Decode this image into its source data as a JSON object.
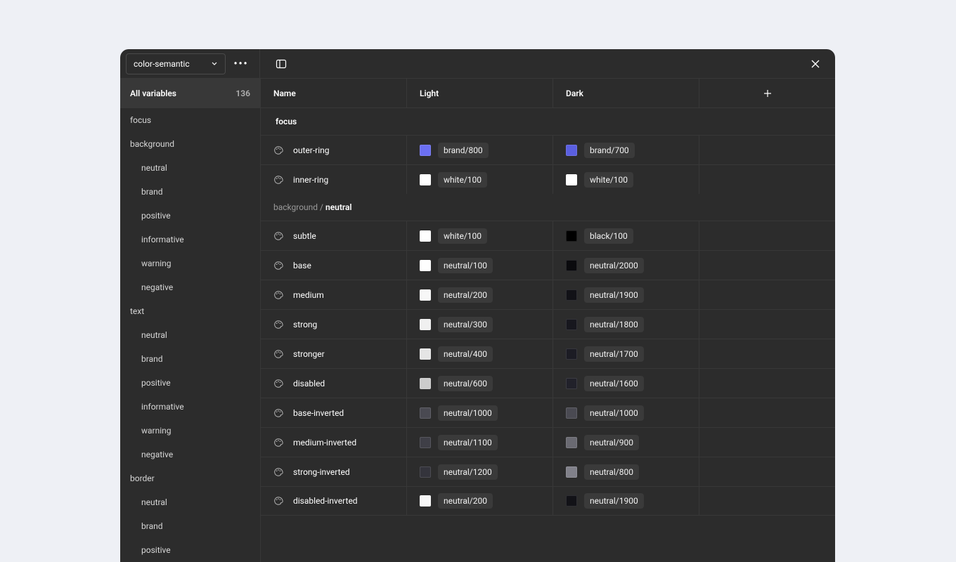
{
  "colors": {
    "page_bg": "#eef0f5",
    "panel_bg": "#2c2c2c",
    "border": "#383838",
    "text": "#ffffff",
    "text_muted": "#b0b0b0",
    "chip_bg": "#3a3a3a",
    "select_border": "#4a4a4a"
  },
  "topbar": {
    "collection_name": "color-semantic"
  },
  "sidebar": {
    "all_label": "All variables",
    "all_count": "136",
    "groups": [
      {
        "label": "focus",
        "children": []
      },
      {
        "label": "background",
        "children": [
          "neutral",
          "brand",
          "positive",
          "informative",
          "warning",
          "negative"
        ]
      },
      {
        "label": "text",
        "children": [
          "neutral",
          "brand",
          "positive",
          "informative",
          "warning",
          "negative"
        ]
      },
      {
        "label": "border",
        "children": [
          "neutral",
          "brand",
          "positive"
        ]
      }
    ]
  },
  "columns": {
    "name": "Name",
    "light": "Light",
    "dark": "Dark"
  },
  "sections": [
    {
      "crumb": "",
      "leaf": "focus",
      "rows": [
        {
          "name": "outer-ring",
          "light": {
            "swatch": "#6b6ff2",
            "label": "brand/800"
          },
          "dark": {
            "swatch": "#5a5fe0",
            "label": "brand/700"
          }
        },
        {
          "name": "inner-ring",
          "light": {
            "swatch": "#ffffff",
            "label": "white/100"
          },
          "dark": {
            "swatch": "#ffffff",
            "label": "white/100"
          }
        }
      ]
    },
    {
      "crumb": "background /",
      "leaf": "neutral",
      "rows": [
        {
          "name": "subtle",
          "light": {
            "swatch": "#ffffff",
            "label": "white/100"
          },
          "dark": {
            "swatch": "#000000",
            "label": "black/100"
          }
        },
        {
          "name": "base",
          "light": {
            "swatch": "#fefefe",
            "label": "neutral/100"
          },
          "dark": {
            "swatch": "#0a0a0d",
            "label": "neutral/2000"
          }
        },
        {
          "name": "medium",
          "light": {
            "swatch": "#f7f7f7",
            "label": "neutral/200"
          },
          "dark": {
            "swatch": "#121217",
            "label": "neutral/1900"
          }
        },
        {
          "name": "strong",
          "light": {
            "swatch": "#f0f0f0",
            "label": "neutral/300"
          },
          "dark": {
            "swatch": "#17171e",
            "label": "neutral/1800"
          }
        },
        {
          "name": "stronger",
          "light": {
            "swatch": "#e5e5e5",
            "label": "neutral/400"
          },
          "dark": {
            "swatch": "#1c1c24",
            "label": "neutral/1700"
          }
        },
        {
          "name": "disabled",
          "light": {
            "swatch": "#cccccc",
            "label": "neutral/600"
          },
          "dark": {
            "swatch": "#21212a",
            "label": "neutral/1600"
          }
        },
        {
          "name": "base-inverted",
          "light": {
            "swatch": "#4a4a52",
            "label": "neutral/1000"
          },
          "dark": {
            "swatch": "#4a4a52",
            "label": "neutral/1000"
          }
        },
        {
          "name": "medium-inverted",
          "light": {
            "swatch": "#3f3f47",
            "label": "neutral/1100"
          },
          "dark": {
            "swatch": "#6a6a72",
            "label": "neutral/900"
          }
        },
        {
          "name": "strong-inverted",
          "light": {
            "swatch": "#34343c",
            "label": "neutral/1200"
          },
          "dark": {
            "swatch": "#81818a",
            "label": "neutral/800"
          }
        },
        {
          "name": "disabled-inverted",
          "light": {
            "swatch": "#f7f7f7",
            "label": "neutral/200"
          },
          "dark": {
            "swatch": "#121217",
            "label": "neutral/1900"
          }
        }
      ]
    }
  ]
}
